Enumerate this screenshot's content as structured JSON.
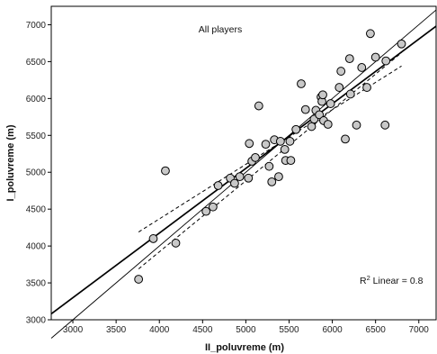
{
  "chart_data": {
    "type": "scatter",
    "title": "All players",
    "xlabel": "II_poluvreme (m)",
    "ylabel": "I_poluvreme (m)",
    "xlim": [
      2750,
      7200
    ],
    "ylim": [
      3000,
      7250
    ],
    "xticks": [
      3000,
      3500,
      4000,
      4500,
      5000,
      5500,
      6000,
      6500,
      7000
    ],
    "yticks": [
      3000,
      3500,
      4000,
      4500,
      5000,
      5500,
      6000,
      6500,
      7000
    ],
    "annotation": {
      "prefix": "R",
      "sup": "2",
      "suffix": " Linear = 0.8"
    },
    "grid": false,
    "points": [
      {
        "x": 3760,
        "y": 3550
      },
      {
        "x": 3930,
        "y": 4100
      },
      {
        "x": 4070,
        "y": 5020
      },
      {
        "x": 4190,
        "y": 4040
      },
      {
        "x": 4540,
        "y": 4470
      },
      {
        "x": 4620,
        "y": 4530
      },
      {
        "x": 4680,
        "y": 4820
      },
      {
        "x": 4820,
        "y": 4920
      },
      {
        "x": 4870,
        "y": 4850
      },
      {
        "x": 4930,
        "y": 4940
      },
      {
        "x": 5030,
        "y": 4920
      },
      {
        "x": 5040,
        "y": 5390
      },
      {
        "x": 5070,
        "y": 5150
      },
      {
        "x": 5110,
        "y": 5200
      },
      {
        "x": 5150,
        "y": 5900
      },
      {
        "x": 5230,
        "y": 5380
      },
      {
        "x": 5270,
        "y": 5080
      },
      {
        "x": 5300,
        "y": 4870
      },
      {
        "x": 5330,
        "y": 5440
      },
      {
        "x": 5380,
        "y": 4940
      },
      {
        "x": 5400,
        "y": 5420
      },
      {
        "x": 5450,
        "y": 5310
      },
      {
        "x": 5460,
        "y": 5160
      },
      {
        "x": 5510,
        "y": 5420
      },
      {
        "x": 5520,
        "y": 5160
      },
      {
        "x": 5580,
        "y": 5580
      },
      {
        "x": 5640,
        "y": 6200
      },
      {
        "x": 5690,
        "y": 5850
      },
      {
        "x": 5760,
        "y": 5620
      },
      {
        "x": 5790,
        "y": 5720
      },
      {
        "x": 5810,
        "y": 5840
      },
      {
        "x": 5850,
        "y": 5780
      },
      {
        "x": 5870,
        "y": 6020
      },
      {
        "x": 5880,
        "y": 5960
      },
      {
        "x": 5890,
        "y": 6050
      },
      {
        "x": 5900,
        "y": 5700
      },
      {
        "x": 5950,
        "y": 5650
      },
      {
        "x": 5980,
        "y": 5930
      },
      {
        "x": 6080,
        "y": 6150
      },
      {
        "x": 6100,
        "y": 6370
      },
      {
        "x": 6150,
        "y": 5450
      },
      {
        "x": 6200,
        "y": 6540
      },
      {
        "x": 6210,
        "y": 6060
      },
      {
        "x": 6280,
        "y": 5640
      },
      {
        "x": 6340,
        "y": 6420
      },
      {
        "x": 6400,
        "y": 6150
      },
      {
        "x": 6440,
        "y": 6880
      },
      {
        "x": 6500,
        "y": 6560
      },
      {
        "x": 6610,
        "y": 5640
      },
      {
        "x": 6620,
        "y": 6510
      },
      {
        "x": 6800,
        "y": 6740
      }
    ],
    "fit_line": {
      "x": [
        2750,
        7200
      ],
      "y": [
        3080,
        6980
      ]
    },
    "identity_line": {
      "x": [
        2750,
        7200
      ],
      "y": [
        2750,
        7200
      ]
    },
    "confidence_band": {
      "upper": {
        "x": [
          3760,
          6800
        ],
        "y": [
          4190,
          6440
        ]
      },
      "lower": {
        "x": [
          3760,
          6800
        ],
        "y": [
          3690,
          6620
        ]
      }
    }
  }
}
